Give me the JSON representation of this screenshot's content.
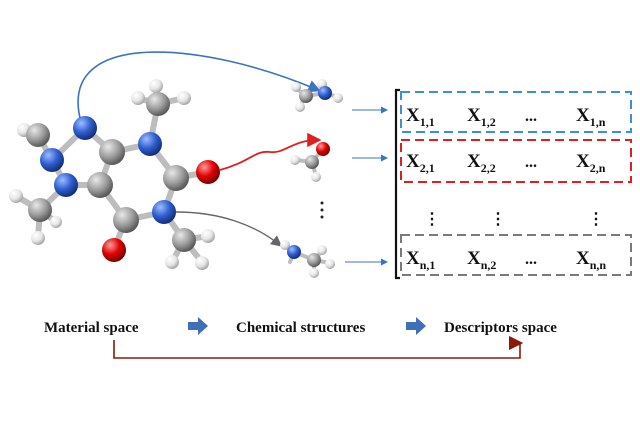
{
  "flow": {
    "material_space": "Material space",
    "chemical_structures": "Chemical structures",
    "descriptors_space": "Descriptors space"
  },
  "matrix": {
    "rows": [
      {
        "cells": [
          {
            "x": "X",
            "sub": "1,1"
          },
          {
            "x": "X",
            "sub": "1,2"
          },
          {
            "x": "...",
            "sub": ""
          },
          {
            "x": "X",
            "sub": "1,n"
          }
        ]
      },
      {
        "cells": [
          {
            "x": "X",
            "sub": "2,1"
          },
          {
            "x": "X",
            "sub": "2,2"
          },
          {
            "x": "...",
            "sub": ""
          },
          {
            "x": "X",
            "sub": "2,n"
          }
        ]
      },
      {
        "cells": [
          {
            "x": "X",
            "sub": "n,1"
          },
          {
            "x": "X",
            "sub": "n,2"
          },
          {
            "x": "...",
            "sub": ""
          },
          {
            "x": "X",
            "sub": "n,n"
          }
        ]
      }
    ],
    "vertical_dots": "⋮"
  },
  "colors": {
    "row1_box": "#3b8fd9",
    "row2_box": "#e02020",
    "row3_box": "#7a7a7a",
    "arrow_blue": "#3b72c4",
    "arrow_red": "#e02020",
    "arrow_gray": "#666666",
    "flow_arrow": "#3f6fb8",
    "bottom_arrow": "#8b1a0a",
    "atom_carbon": "#9a9a9a",
    "atom_nitrogen": "#2f5fd0",
    "atom_oxygen": "#e00000",
    "atom_hydrogen": "#ececec"
  }
}
